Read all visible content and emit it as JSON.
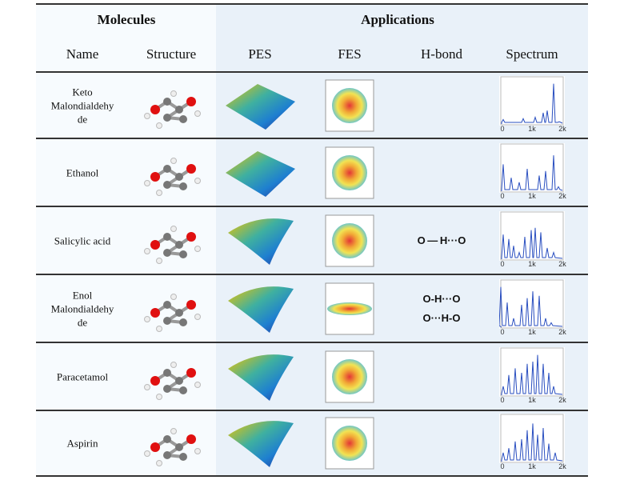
{
  "header": {
    "group_molecules": "Molecules",
    "group_applications": "Applications",
    "columns": [
      "Name",
      "Structure",
      "PES",
      "FES",
      "H-bond",
      "Spectrum"
    ]
  },
  "spectrum_ticks": [
    "0",
    "1k",
    "2k"
  ],
  "colors": {
    "applications_bg": "#e9f1f9",
    "molecules_bg": "#f7fbfe",
    "spectrum_line": "#2a4fc0"
  },
  "rows": [
    {
      "name": "Keto\nMalondialdehy\nde",
      "hbond": ""
    },
    {
      "name": "Ethanol",
      "hbond": ""
    },
    {
      "name": "Salicylic acid",
      "hbond": "O — H···O"
    },
    {
      "name": "Enol\nMalondialdehy\nde",
      "hbond": "O-H···O\nO···H-O"
    },
    {
      "name": "Paracetamol",
      "hbond": ""
    },
    {
      "name": "Aspirin",
      "hbond": ""
    }
  ]
}
